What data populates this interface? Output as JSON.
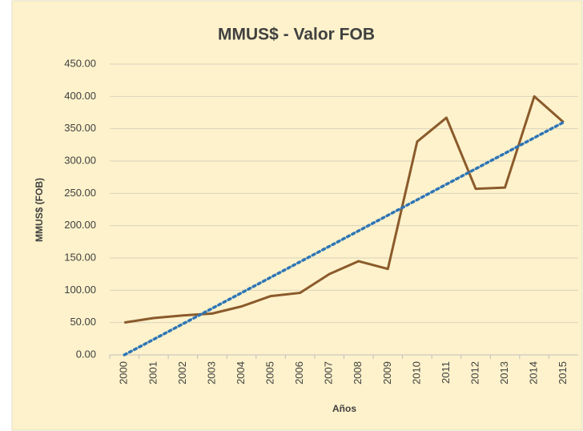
{
  "chart_data": {
    "type": "line",
    "title": "MMUS$ - Valor FOB",
    "y_label": "MMUS$  (FOB)",
    "x_label": "Años",
    "categories": [
      "2000",
      "2001",
      "2002",
      "2003",
      "2004",
      "2005",
      "2006",
      "2007",
      "2008",
      "2009",
      "2010",
      "2011",
      "2012",
      "2013",
      "2014",
      "2015"
    ],
    "series": [
      {
        "color": "#8b5a2b",
        "values": [
          50,
          57,
          61,
          64,
          75,
          91,
          96,
          125,
          145,
          133,
          330,
          367,
          257,
          259,
          400,
          360
        ]
      }
    ],
    "trendline": {
      "color": "#2e75b6",
      "style": "dotted",
      "values": [
        0,
        360
      ]
    },
    "ylim": [
      0,
      450
    ],
    "yticks": [
      {
        "value": 0,
        "label": "0.00"
      },
      {
        "value": 50,
        "label": "50.00"
      },
      {
        "value": 100,
        "label": "100.00"
      },
      {
        "value": 150,
        "label": "150.00"
      },
      {
        "value": 200,
        "label": "200.00"
      },
      {
        "value": 250,
        "label": "250.00"
      },
      {
        "value": 300,
        "label": "300.00"
      },
      {
        "value": 350,
        "label": "350.00"
      },
      {
        "value": 400,
        "label": "400.00"
      },
      {
        "value": 450,
        "label": "450.00"
      }
    ],
    "grid": true
  }
}
